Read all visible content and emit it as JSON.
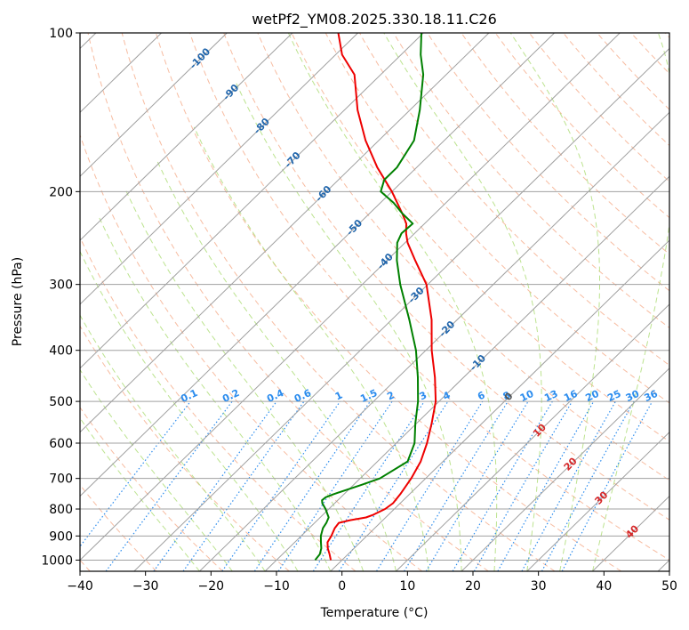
{
  "chart_data": {
    "type": "line",
    "subtype": "skew-t log-p",
    "title": "wetPf2_YM08.2025.330.18.11.C26",
    "xlabel": "Temperature (°C)",
    "ylabel": "Pressure (hPa)",
    "xlim": [
      -40,
      50
    ],
    "ylim": [
      1050,
      100
    ],
    "y_scale": "log",
    "grid": true,
    "x_ticks": [
      "−40",
      "−30",
      "−20",
      "−10",
      "0",
      "10",
      "20",
      "30",
      "40",
      "50"
    ],
    "y_ticks": [
      "100",
      "200",
      "300",
      "400",
      "500",
      "600",
      "700",
      "800",
      "900",
      "1000"
    ],
    "colors": {
      "temperature": "#ee0000",
      "dewpoint": "#008000",
      "isotherm": "#a0a0a0",
      "dry_adiabat": "#f4a582",
      "moist_adiabat": "#a6d96a",
      "mixing_ratio": "#2b8cee",
      "isotherm_label": "#2166ac",
      "adiabat_label": "#d62728"
    },
    "isotherm_labels": [
      "-100",
      "-90",
      "-80",
      "-70",
      "-60",
      "-50",
      "-40",
      "-30",
      "-20",
      "-10",
      "0",
      "10",
      "20",
      "30",
      "40"
    ],
    "mixing_ratio_labels": [
      "0.1",
      "0.2",
      "0.4",
      "0.6",
      "1",
      "1.5",
      "2",
      "3",
      "4",
      "6",
      "8",
      "10",
      "13",
      "16",
      "20",
      "25",
      "30",
      "36"
    ],
    "series": [
      {
        "key": "temperature",
        "pressure": [
          1000,
          975,
          950,
          925,
          900,
          870,
          850,
          840,
          830,
          820,
          800,
          780,
          750,
          700,
          650,
          600,
          550,
          500,
          450,
          400,
          350,
          300,
          270,
          250,
          240,
          230,
          220,
          200,
          180,
          160,
          140,
          120,
          110,
          100
        ],
        "values": [
          -1.7,
          -2.8,
          -4.0,
          -5.0,
          -5.4,
          -6.1,
          -6.3,
          -5.0,
          -3.0,
          -2.3,
          -1.4,
          -1.1,
          -1.4,
          -2.2,
          -3.4,
          -5.3,
          -7.7,
          -10.5,
          -14.4,
          -19.1,
          -23.9,
          -30.2,
          -35.7,
          -39.6,
          -41.3,
          -42.8,
          -45.0,
          -50.0,
          -56.0,
          -62.0,
          -68.0,
          -74.0,
          -79.0,
          -83.0
        ]
      },
      {
        "key": "dewpoint",
        "pressure": [
          1000,
          975,
          950,
          925,
          900,
          870,
          850,
          830,
          800,
          780,
          770,
          760,
          750,
          720,
          700,
          650,
          600,
          550,
          500,
          450,
          400,
          350,
          300,
          270,
          250,
          240,
          230,
          220,
          210,
          200,
          190,
          180,
          160,
          140,
          120,
          110,
          100
        ],
        "values": [
          -4.1,
          -4.3,
          -5.0,
          -6.0,
          -7.0,
          -7.9,
          -8.2,
          -8.7,
          -10.5,
          -11.9,
          -12.4,
          -12.3,
          -11.6,
          -8.8,
          -7.0,
          -5.4,
          -7.2,
          -10.2,
          -13.2,
          -17.0,
          -21.5,
          -27.3,
          -34.2,
          -38.5,
          -41.2,
          -42.0,
          -41.8,
          -45.0,
          -48.0,
          -51.7,
          -53.0,
          -53.0,
          -54.6,
          -58.5,
          -63.5,
          -67.0,
          -70.3
        ]
      }
    ]
  }
}
